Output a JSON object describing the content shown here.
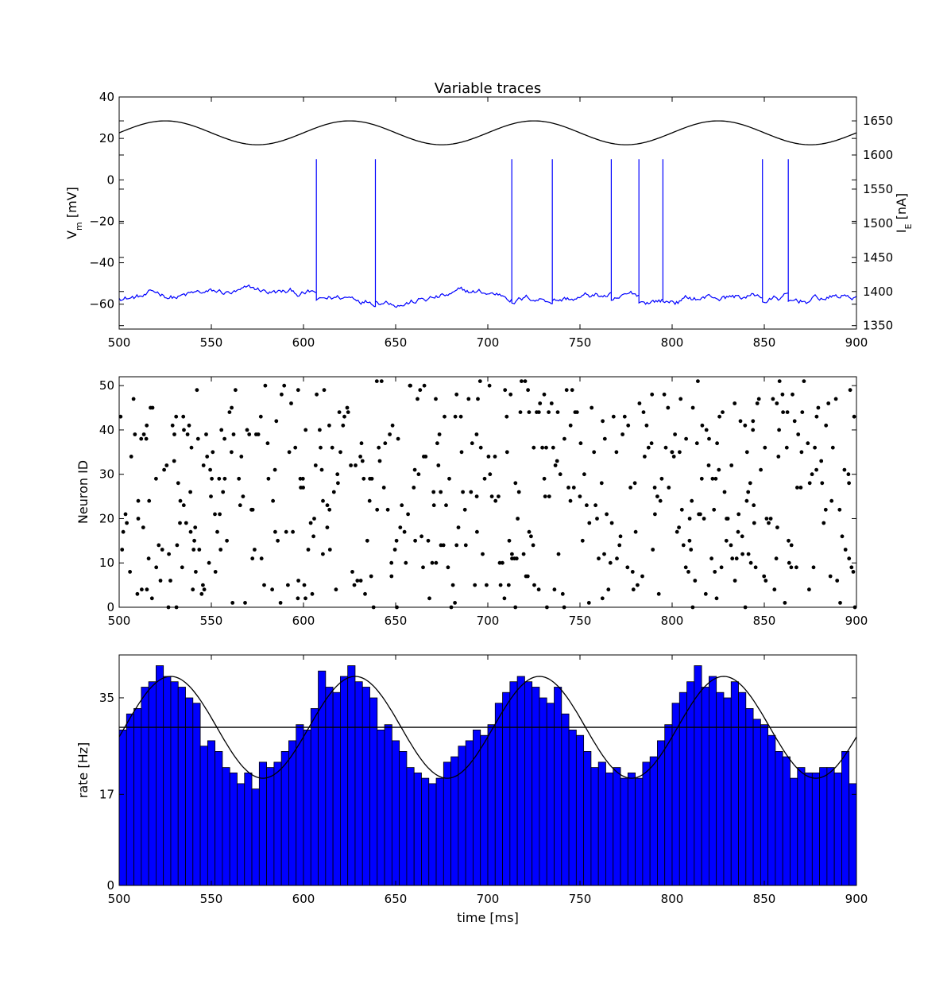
{
  "chart_data": [
    {
      "type": "line",
      "title": "Variable traces",
      "xlabel": "",
      "ylabel": "V_m [mV]",
      "ylabel_main": "V",
      "ylabel_sub": "m",
      "ylabel_unit": " [mV]",
      "y2label": "I_E [nA]",
      "y2label_main": "I",
      "y2label_sub": "E",
      "y2label_unit": " [nA]",
      "xlim": [
        500,
        900
      ],
      "ylim": [
        -72,
        40
      ],
      "y2lim": [
        1345,
        1685
      ],
      "xticks": [
        500,
        550,
        600,
        650,
        700,
        750,
        800,
        850,
        900
      ],
      "yticks": [
        -60,
        -40,
        -20,
        0,
        20,
        40
      ],
      "y2ticks": [
        1350,
        1400,
        1450,
        1500,
        1550,
        1600,
        1650
      ],
      "grid": false,
      "series": [
        {
          "axis": "y2",
          "color": "#000000",
          "kind": "sinusoid",
          "offset": 1632.5,
          "amplitude": 17.5,
          "period_ms": 100,
          "peak_ms": 525
        },
        {
          "axis": "y",
          "color": "#0000ff",
          "kind": "membrane",
          "baseline": -56,
          "spike_peak": 10,
          "spike_times": [
            607,
            639,
            713,
            735,
            767,
            782,
            795,
            849,
            863
          ]
        }
      ]
    },
    {
      "type": "scatter",
      "xlabel": "",
      "ylabel": "Neuron ID",
      "xlim": [
        500,
        900
      ],
      "ylim": [
        0,
        52
      ],
      "xticks": [
        500,
        550,
        600,
        650,
        700,
        750,
        800,
        850,
        900
      ],
      "yticks": [
        0,
        10,
        20,
        30,
        40,
        50
      ],
      "grid": false,
      "color": "#000000",
      "neurons": 52,
      "rate_offset_hz": 29,
      "rate_amplitude_hz": 10,
      "points": []
    },
    {
      "type": "bar",
      "xlabel": "time [ms]",
      "ylabel": "rate [Hz]",
      "xlim": [
        500,
        900
      ],
      "ylim": [
        0,
        43
      ],
      "xticks": [
        500,
        550,
        600,
        650,
        700,
        750,
        800,
        850,
        900
      ],
      "yticks": [
        0,
        17,
        35
      ],
      "grid": false,
      "bar_color": "#0000ff",
      "bin_width_ms": 4,
      "bin_start_ms": 500,
      "values": [
        29,
        32,
        33,
        37,
        38,
        41,
        39,
        38,
        37,
        35,
        34,
        26,
        27,
        25,
        22,
        21,
        19,
        21,
        18,
        23,
        22,
        23,
        25,
        27,
        30,
        29,
        33,
        40,
        37,
        36,
        39,
        41,
        38,
        37,
        35,
        29,
        30,
        27,
        25,
        22,
        21,
        20,
        19,
        20,
        23,
        24,
        26,
        27,
        29,
        28,
        30,
        34,
        36,
        38,
        39,
        38,
        37,
        35,
        34,
        37,
        32,
        29,
        28,
        25,
        22,
        23,
        21,
        22,
        20,
        21,
        20,
        23,
        24,
        27,
        30,
        34,
        36,
        38,
        41,
        37,
        39,
        36,
        35,
        38,
        36,
        33,
        31,
        30,
        28,
        25,
        24,
        20,
        22,
        21,
        21,
        22,
        22,
        21,
        25,
        19
      ],
      "hlines": [
        {
          "y": 29.5,
          "color": "#000000"
        }
      ],
      "overlay": {
        "color": "#000000",
        "kind": "sinusoid",
        "offset": 29.5,
        "amplitude": 9.5,
        "period_ms": 100,
        "peak_ms": 528
      }
    }
  ]
}
